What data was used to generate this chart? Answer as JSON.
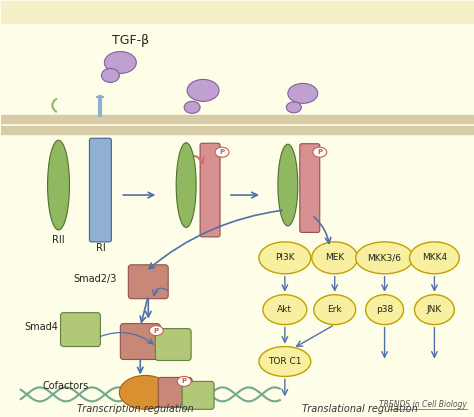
{
  "bg_color": "#fefee8",
  "top_bar_color": "#f5f0c8",
  "membrane_color": "#d4c9a8",
  "arrow_color": "#5070a8",
  "title": "TGF-β",
  "rII_label": "RII",
  "rI_label": "RI",
  "smad23_label": "Smad2/3",
  "smad4_label": "Smad4",
  "cofactors_label": "Cofactors",
  "transcription_label": "Transcription regulation",
  "translational_label": "Translational regulation",
  "journal_label": "TRENDS in Cell Biology",
  "kinase_row1": [
    "PI3K",
    "MEK",
    "MKK3/6",
    "MKK4"
  ],
  "kinase_row2": [
    "Akt",
    "Erk",
    "p38",
    "JNK"
  ],
  "kinase_row3": [
    "TOR C1"
  ],
  "yellow_fill": "#f8f0a0",
  "yellow_edge": "#c0a000",
  "green_receptor": "#90b860",
  "blue_receptor": "#90b0d0",
  "pink_receptor": "#d89090",
  "ligand_color": "#c0a0d0",
  "smad23_color": "#c88878",
  "smad4_color": "#b0c878",
  "cofactor_color": "#d89030",
  "p_color": "#c06050",
  "dna_color": "#70a890"
}
